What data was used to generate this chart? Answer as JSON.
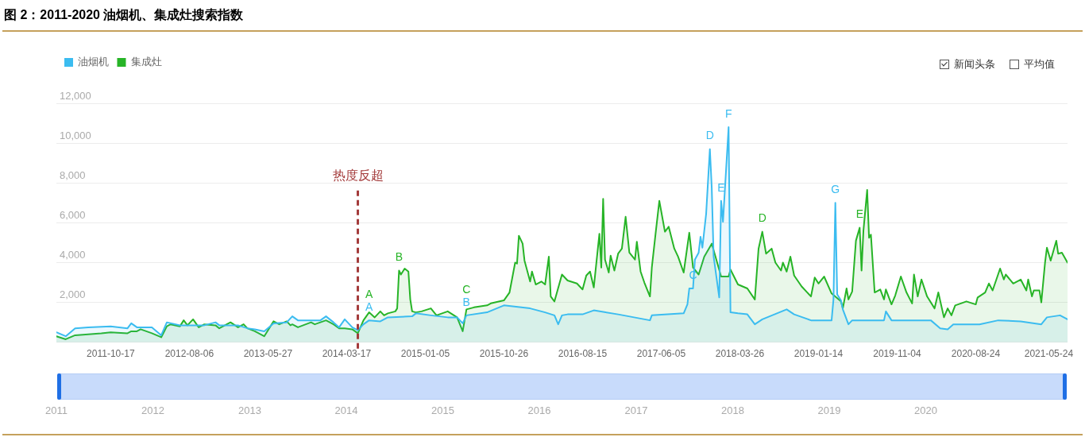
{
  "chart_data": {
    "type": "area",
    "title": "图 2：2011-2020 油烟机、集成灶搜索指数",
    "legend": "top left",
    "grid": "y",
    "marker": "none",
    "xlim": [
      "2011-03-28",
      "2021-08-02"
    ],
    "xticks": [
      "2011-10-17",
      "2012-08-06",
      "2013-05-27",
      "2014-03-17",
      "2015-01-05",
      "2015-10-26",
      "2016-08-15",
      "2017-06-05",
      "2018-03-26",
      "2019-01-14",
      "2019-11-04",
      "2020-08-24",
      "2021-05-24"
    ],
    "ylim": [
      0,
      12000
    ],
    "yticks": [
      {
        "value": 0,
        "label": null
      },
      {
        "value": 2000,
        "label": "2,000"
      },
      {
        "value": 4000,
        "label": "4,000"
      },
      {
        "value": 6000,
        "label": "6,000"
      },
      {
        "value": 8000,
        "label": "8,000"
      },
      {
        "value": 10000,
        "label": "10,000"
      },
      {
        "value": 12000,
        "label": "12,000"
      }
    ],
    "x2lim": [
      "2011",
      "2021-06-20"
    ],
    "x2ticks": [
      "2011",
      "2012",
      "2013",
      "2014",
      "2015",
      "2016",
      "2017",
      "2018",
      "2019",
      "2020"
    ],
    "ref_lines": [
      {
        "axis": "x",
        "value": "2014-04-28",
        "label": "热度反超",
        "color": "#a33a3a",
        "line_style": "dashed"
      }
    ],
    "annotations": [
      "新闻头条",
      "平均值",
      {
        "text": "A",
        "x": "2014-06-09",
        "y": 1100
      },
      {
        "text": "A",
        "x": "2014-06-09",
        "y": 1500
      },
      {
        "text": "B",
        "x": "2014-09-29",
        "y": 3600
      },
      {
        "text": "B",
        "x": "2015-06-08",
        "y": 1350
      },
      {
        "text": "C",
        "x": "2015-06-08",
        "y": 1650
      },
      {
        "text": "C",
        "x": "2017-10-02",
        "y": 2700
      },
      {
        "text": "D",
        "x": "2017-12-04",
        "y": 9700
      },
      {
        "text": "E",
        "x": "2018-01-15",
        "y": 7100
      },
      {
        "text": "F",
        "x": "2018-02-12",
        "y": 10800
      },
      {
        "text": "D",
        "x": "2018-06-18",
        "y": 5550
      },
      {
        "text": "G",
        "x": "2019-03-18",
        "y": 7000
      },
      {
        "text": "E",
        "x": "2019-06-17",
        "y": 5750
      }
    ],
    "series": [
      {
        "name": "油烟机",
        "color": "#3bbcf0",
        "x": [
          "2011-03-28",
          "2011-05-02",
          "2011-06-06",
          "2011-07-25",
          "2011-10-17",
          "2011-12-19",
          "2012-01-02",
          "2012-01-23",
          "2012-03-19",
          "2012-04-23",
          "2012-05-14",
          "2012-07-02",
          "2012-10-01",
          "2012-11-12",
          "2012-11-26",
          "2013-02-04",
          "2013-03-11",
          "2013-04-08",
          "2013-05-13",
          "2013-06-17",
          "2013-08-05",
          "2013-08-26",
          "2013-09-16",
          "2013-12-09",
          "2013-12-30",
          "2014-01-27",
          "2014-02-17",
          "2014-03-10",
          "2014-04-07",
          "2014-04-28",
          "2014-05-19",
          "2014-06-09",
          "2014-07-21",
          "2014-08-18",
          "2014-11-17",
          "2014-12-01",
          "2015-01-26",
          "2015-03-30",
          "2015-05-04",
          "2015-05-25",
          "2015-06-08",
          "2015-08-24",
          "2015-10-26",
          "2016-02-01",
          "2016-03-28",
          "2016-05-02",
          "2016-05-16",
          "2016-05-30",
          "2016-06-20",
          "2016-08-15",
          "2016-09-26",
          "2016-12-26",
          "2017-04-24",
          "2017-05-01",
          "2017-08-28",
          "2017-09-11",
          "2017-09-18",
          "2017-10-02",
          "2017-10-09",
          "2017-10-23",
          "2017-10-30",
          "2017-11-06",
          "2017-11-20",
          "2017-12-04",
          "2017-12-11",
          "2017-12-18",
          "2018-01-08",
          "2018-01-15",
          "2018-01-22",
          "2018-02-12",
          "2018-02-19",
          "2018-03-19",
          "2018-04-23",
          "2018-05-21",
          "2018-06-18",
          "2018-09-17",
          "2018-10-15",
          "2018-12-17",
          "2019-01-14",
          "2019-03-04",
          "2019-03-11",
          "2019-03-18",
          "2019-03-25",
          "2019-04-08",
          "2019-04-15",
          "2019-05-06",
          "2019-05-20",
          "2019-09-16",
          "2019-09-23",
          "2019-10-14",
          "2020-01-20",
          "2020-03-09",
          "2020-04-13",
          "2020-05-11",
          "2020-06-01",
          "2020-08-24",
          "2020-09-07",
          "2020-11-16",
          "2021-02-08",
          "2021-04-26",
          "2021-05-17",
          "2021-07-05",
          "2021-08-02"
        ],
        "values": [
          500,
          300,
          700,
          750,
          800,
          700,
          950,
          750,
          750,
          350,
          1000,
          850,
          850,
          1000,
          850,
          850,
          700,
          650,
          550,
          950,
          1000,
          1300,
          1100,
          1100,
          1300,
          1000,
          750,
          1150,
          750,
          600,
          900,
          1100,
          1050,
          1250,
          1300,
          1450,
          1350,
          1250,
          1250,
          950,
          1350,
          1500,
          1850,
          1700,
          1500,
          1350,
          900,
          1350,
          1400,
          1400,
          1600,
          1400,
          1100,
          1350,
          1450,
          1900,
          2700,
          2700,
          4150,
          4500,
          5300,
          4750,
          6450,
          9700,
          7750,
          4300,
          2250,
          7100,
          6050,
          10800,
          1500,
          1450,
          1400,
          900,
          1150,
          1650,
          1400,
          1100,
          1100,
          1100,
          2150,
          7000,
          2400,
          2100,
          1650,
          900,
          1100,
          1100,
          1550,
          1100,
          1100,
          1100,
          700,
          650,
          900,
          900,
          900,
          1100,
          1050,
          900,
          1250,
          1350,
          1150
        ]
      },
      {
        "name": "集成灶",
        "color": "#27b427",
        "x": [
          "2011-03-28",
          "2011-05-02",
          "2011-06-06",
          "2011-07-25",
          "2011-09-12",
          "2011-10-17",
          "2011-12-19",
          "2012-01-02",
          "2012-01-23",
          "2012-02-06",
          "2012-03-19",
          "2012-04-23",
          "2012-05-14",
          "2012-05-28",
          "2012-07-02",
          "2012-07-16",
          "2012-07-30",
          "2012-08-20",
          "2012-09-10",
          "2012-10-01",
          "2012-11-12",
          "2012-11-26",
          "2013-01-07",
          "2013-02-04",
          "2013-02-25",
          "2013-03-11",
          "2013-04-08",
          "2013-05-13",
          "2013-06-17",
          "2013-07-08",
          "2013-08-05",
          "2013-08-19",
          "2013-08-26",
          "2013-09-16",
          "2013-11-04",
          "2013-11-18",
          "2013-12-09",
          "2013-12-30",
          "2014-01-27",
          "2014-02-17",
          "2014-03-10",
          "2014-04-07",
          "2014-04-28",
          "2014-05-19",
          "2014-06-09",
          "2014-06-30",
          "2014-07-21",
          "2014-08-04",
          "2014-08-18",
          "2014-09-15",
          "2014-09-22",
          "2014-09-29",
          "2014-10-06",
          "2014-10-20",
          "2014-11-03",
          "2014-11-10",
          "2014-11-17",
          "2014-12-01",
          "2014-12-22",
          "2015-01-26",
          "2015-02-16",
          "2015-03-30",
          "2015-05-04",
          "2015-05-25",
          "2015-06-08",
          "2015-07-06",
          "2015-08-24",
          "2015-09-07",
          "2015-10-26",
          "2015-11-16",
          "2015-12-07",
          "2015-12-14",
          "2015-12-21",
          "2016-01-04",
          "2016-01-11",
          "2016-02-01",
          "2016-02-08",
          "2016-02-22",
          "2016-03-14",
          "2016-03-28",
          "2016-04-11",
          "2016-04-18",
          "2016-05-02",
          "2016-05-30",
          "2016-06-20",
          "2016-07-25",
          "2016-08-15",
          "2016-08-29",
          "2016-09-12",
          "2016-09-26",
          "2016-10-17",
          "2016-10-24",
          "2016-10-31",
          "2016-11-07",
          "2016-11-21",
          "2016-11-28",
          "2016-12-12",
          "2016-12-26",
          "2017-01-09",
          "2017-01-23",
          "2017-02-06",
          "2017-02-27",
          "2017-03-06",
          "2017-03-20",
          "2017-04-03",
          "2017-04-24",
          "2017-05-01",
          "2017-05-15",
          "2017-05-29",
          "2017-06-19",
          "2017-07-03",
          "2017-07-24",
          "2017-08-07",
          "2017-08-28",
          "2017-09-18",
          "2017-10-02",
          "2017-10-23",
          "2017-11-13",
          "2017-12-11",
          "2017-12-25",
          "2018-01-15",
          "2018-02-12",
          "2018-02-19",
          "2018-03-19",
          "2018-04-23",
          "2018-05-21",
          "2018-06-04",
          "2018-06-18",
          "2018-07-02",
          "2018-07-23",
          "2018-08-06",
          "2018-08-27",
          "2018-09-03",
          "2018-09-17",
          "2018-10-01",
          "2018-10-15",
          "2018-11-12",
          "2018-12-17",
          "2018-12-31",
          "2019-01-14",
          "2019-02-04",
          "2019-03-04",
          "2019-04-08",
          "2019-04-15",
          "2019-04-29",
          "2019-05-06",
          "2019-05-20",
          "2019-06-03",
          "2019-06-17",
          "2019-06-24",
          "2019-07-01",
          "2019-07-15",
          "2019-07-22",
          "2019-07-29",
          "2019-08-12",
          "2019-09-02",
          "2019-09-16",
          "2019-09-23",
          "2019-10-14",
          "2019-10-28",
          "2019-11-18",
          "2019-12-09",
          "2019-12-30",
          "2020-01-06",
          "2020-01-20",
          "2020-02-03",
          "2020-02-24",
          "2020-03-23",
          "2020-04-06",
          "2020-04-27",
          "2020-05-11",
          "2020-05-25",
          "2020-06-08",
          "2020-07-20",
          "2020-08-24",
          "2020-08-31",
          "2020-09-28",
          "2020-10-12",
          "2020-10-26",
          "2020-11-23",
          "2020-12-07",
          "2020-12-14",
          "2021-01-11",
          "2021-02-08",
          "2021-03-01",
          "2021-03-08",
          "2021-03-22",
          "2021-03-29",
          "2021-04-19",
          "2021-04-26",
          "2021-05-10",
          "2021-05-17",
          "2021-05-31",
          "2021-06-21",
          "2021-06-28",
          "2021-07-12",
          "2021-08-02"
        ],
        "values": [
          300,
          150,
          350,
          400,
          450,
          500,
          450,
          550,
          550,
          650,
          450,
          250,
          800,
          900,
          800,
          1100,
          850,
          1150,
          750,
          900,
          850,
          700,
          1000,
          750,
          900,
          700,
          550,
          300,
          1050,
          900,
          1050,
          850,
          900,
          750,
          1000,
          900,
          1000,
          1100,
          900,
          700,
          700,
          650,
          450,
          1100,
          1500,
          1250,
          1550,
          1350,
          1450,
          1550,
          1700,
          3600,
          3400,
          3700,
          3550,
          2150,
          1550,
          1500,
          1550,
          1700,
          1350,
          1550,
          1250,
          550,
          1650,
          1750,
          1850,
          1950,
          2100,
          2500,
          4000,
          3950,
          5350,
          4950,
          4100,
          3050,
          3550,
          2900,
          3050,
          2900,
          4300,
          2300,
          2050,
          3400,
          3100,
          2950,
          2650,
          3350,
          3550,
          2750,
          5450,
          3750,
          7200,
          4150,
          3500,
          4350,
          3600,
          4450,
          4700,
          6300,
          4500,
          4150,
          5050,
          3550,
          3000,
          2300,
          3750,
          5450,
          7100,
          5550,
          5800,
          4700,
          4300,
          3500,
          5500,
          3750,
          3400,
          4300,
          4950,
          4300,
          3300,
          3300,
          3650,
          2900,
          2700,
          2150,
          4700,
          5550,
          4450,
          4700,
          4000,
          3600,
          4000,
          3550,
          4300,
          3350,
          2800,
          2300,
          3250,
          2950,
          3300,
          2450,
          2050,
          1700,
          2700,
          2150,
          2550,
          5100,
          5750,
          3600,
          5600,
          7650,
          5250,
          5400,
          2500,
          2650,
          2150,
          2650,
          1900,
          2350,
          3300,
          2500,
          1950,
          3400,
          2300,
          3150,
          2300,
          1700,
          2500,
          1250,
          1700,
          1350,
          1850,
          2050,
          1900,
          2250,
          2500,
          2950,
          2600,
          3700,
          3150,
          3400,
          2950,
          3150,
          2600,
          3150,
          2300,
          2600,
          2600,
          2000,
          4000,
          4750,
          4100,
          5100,
          4450,
          4500,
          4000
        ]
      }
    ]
  }
}
